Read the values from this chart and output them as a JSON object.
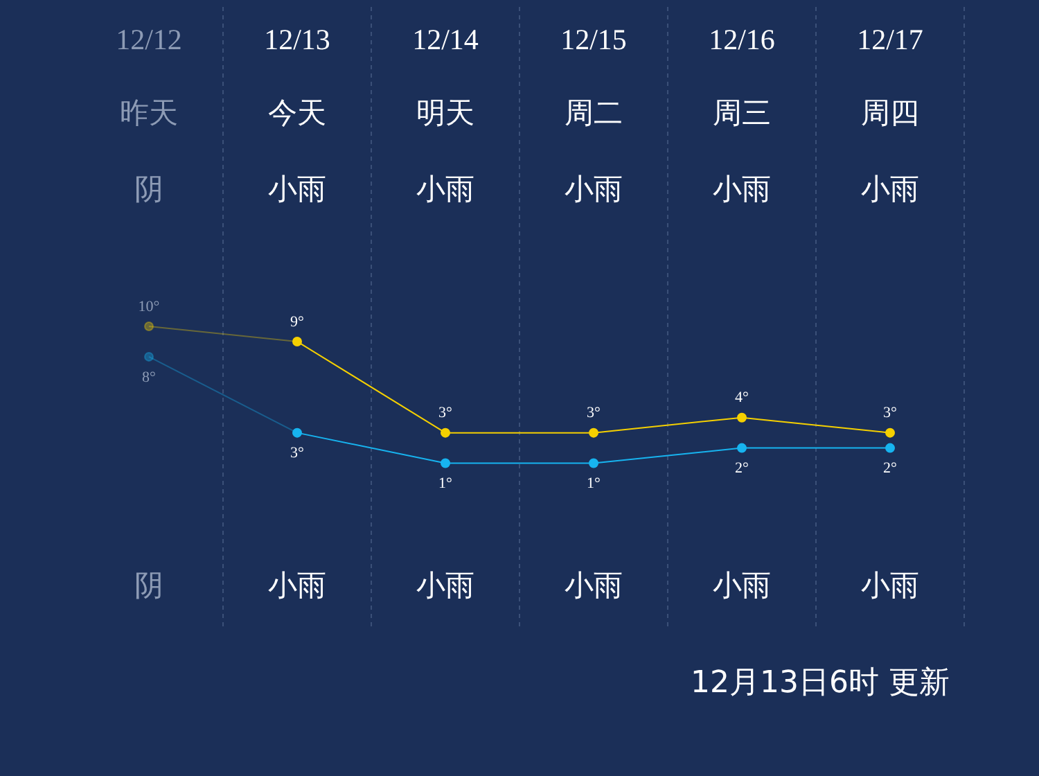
{
  "chart_data": {
    "type": "line",
    "categories": [
      "12/12",
      "12/13",
      "12/14",
      "12/15",
      "12/16",
      "12/17"
    ],
    "series": [
      {
        "color": "#f5d000",
        "values": [
          10,
          9,
          3,
          3,
          4,
          3
        ],
        "value_labels": [
          "10°",
          "9°",
          "3°",
          "3°",
          "4°",
          "3°"
        ]
      },
      {
        "color": "#17b4f0",
        "values": [
          8,
          3,
          1,
          1,
          2,
          2
        ],
        "value_labels": [
          "8°",
          "3°",
          "1°",
          "1°",
          "2°",
          "2°"
        ]
      }
    ],
    "annotations": [
      "昨天",
      "今天",
      "明天",
      "周二",
      "周三",
      "周四",
      "阴",
      "小雨",
      "小雨",
      "小雨",
      "小雨",
      "小雨",
      "阴",
      "小雨",
      "小雨",
      "小雨",
      "小雨",
      "小雨",
      "12月13日6时 更新"
    ],
    "grid": "x",
    "marker": "circle",
    "line_style": "solid"
  }
}
